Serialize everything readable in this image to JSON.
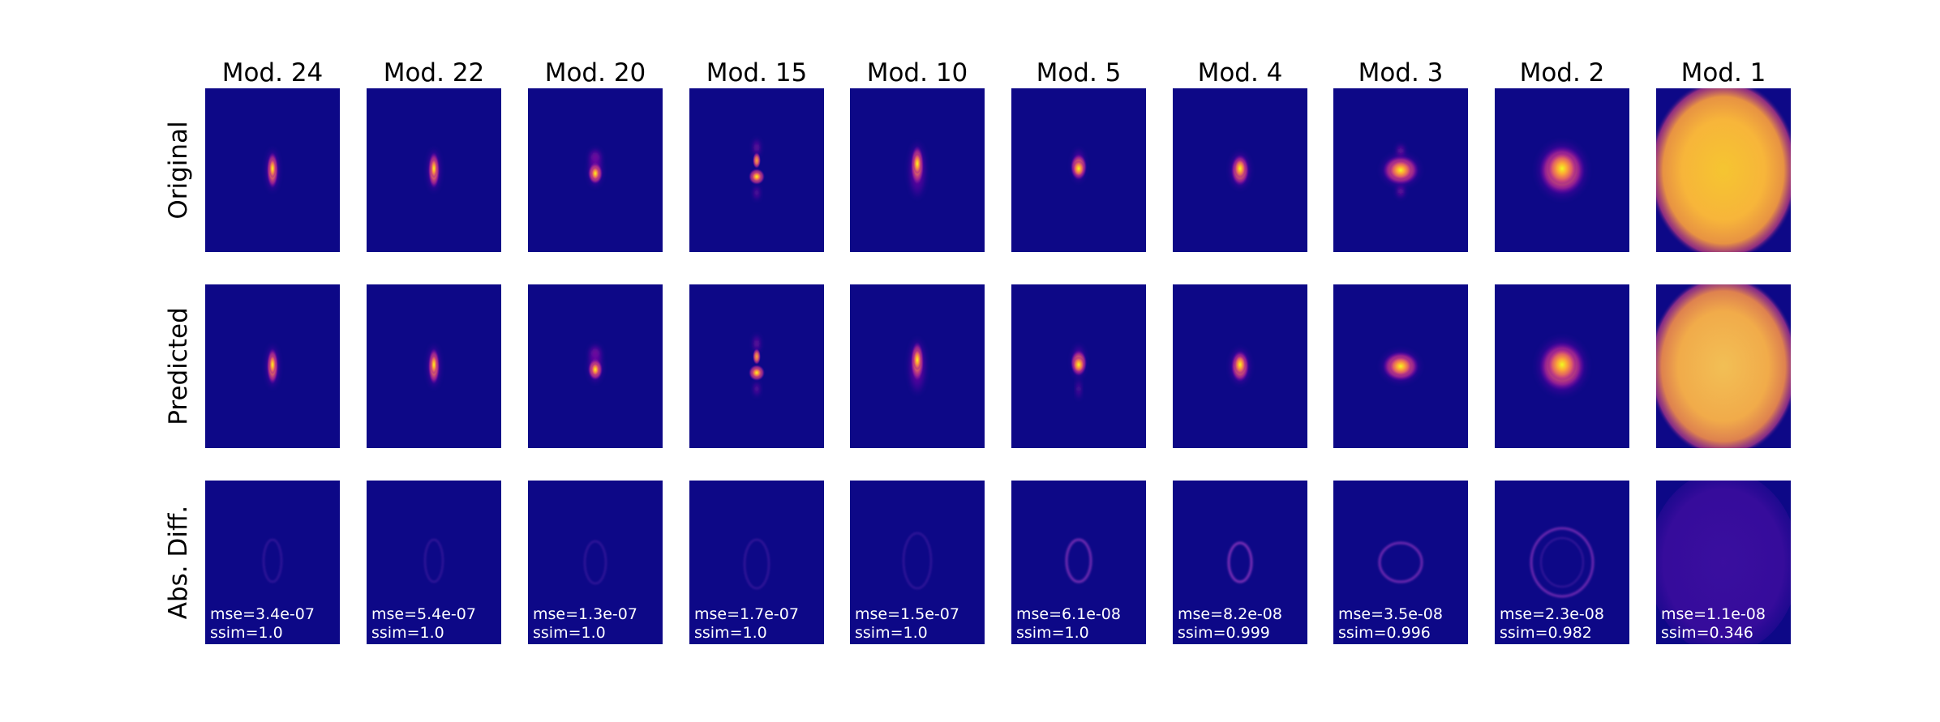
{
  "chart_data": {
    "type": "heatmap",
    "title": "",
    "colormap": "plasma",
    "colormap_colors": [
      "#0d0887",
      "#6a00a8",
      "#b12a90",
      "#e16462",
      "#fca636",
      "#f0f921"
    ],
    "columns": [
      {
        "label": "Mod. 24",
        "mse": "mse=3.4e-07",
        "ssim": "ssim=1.0",
        "shape": "spot-vertical",
        "diff_strength": 0.1
      },
      {
        "label": "Mod. 22",
        "mse": "mse=5.4e-07",
        "ssim": "ssim=1.0",
        "shape": "spot-vertical",
        "diff_strength": 0.09
      },
      {
        "label": "Mod. 20",
        "mse": "mse=1.3e-07",
        "ssim": "ssim=1.0",
        "shape": "spot-split",
        "diff_strength": 0.1
      },
      {
        "label": "Mod. 15",
        "mse": "mse=1.7e-07",
        "ssim": "ssim=1.0",
        "shape": "spot-beads",
        "diff_strength": 0.12
      },
      {
        "label": "Mod. 10",
        "mse": "mse=1.5e-07",
        "ssim": "ssim=1.0",
        "shape": "spot-elongated",
        "diff_strength": 0.1
      },
      {
        "label": "Mod. 5",
        "mse": "mse=6.1e-08",
        "ssim": "ssim=1.0",
        "shape": "spot-teardrop",
        "diff_strength": 0.22
      },
      {
        "label": "Mod. 4",
        "mse": "mse=8.2e-08",
        "ssim": "ssim=0.999",
        "shape": "spot-oval",
        "diff_strength": 0.28
      },
      {
        "label": "Mod. 3",
        "mse": "mse=3.5e-08",
        "ssim": "ssim=0.996",
        "shape": "spot-diamond",
        "diff_strength": 0.2
      },
      {
        "label": "Mod. 2",
        "mse": "mse=2.3e-08",
        "ssim": "ssim=0.982",
        "shape": "spot-blob",
        "diff_strength": 0.2
      },
      {
        "label": "Mod. 1",
        "mse": "mse=1.1e-08",
        "ssim": "ssim=0.346",
        "shape": "full-ellipse",
        "diff_strength": 0.25
      }
    ],
    "rows": [
      {
        "label": "Original",
        "kind": "intensity"
      },
      {
        "label": "Predicted",
        "kind": "intensity"
      },
      {
        "label": "Abs. Diff.",
        "kind": "difference"
      }
    ]
  }
}
